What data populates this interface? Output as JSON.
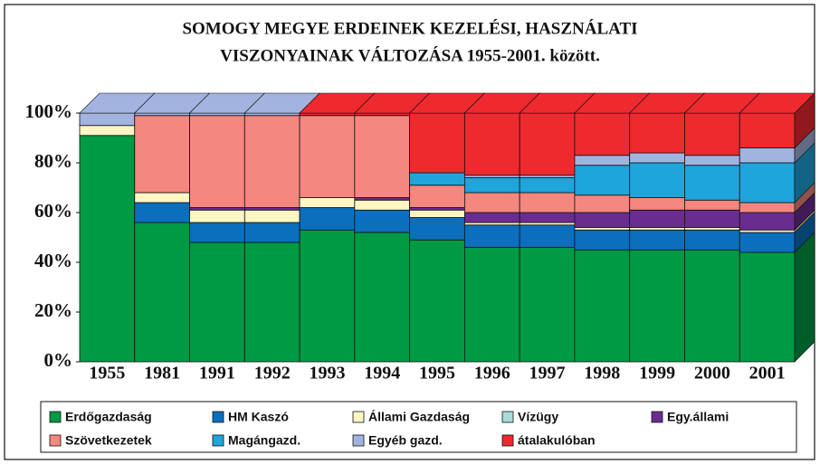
{
  "chart_data": {
    "type": "stacked_bar_3d",
    "title": [
      "SOMOGY MEGYE ERDEINEK KEZELÉSI, HASZNÁLATI",
      "VISZONYAINAK VÁLTOZÁSA  1955-2001. között."
    ],
    "categories": [
      "1955",
      "1981",
      "1991",
      "1992",
      "1993",
      "1994",
      "1995",
      "1996",
      "1997",
      "1998",
      "1999",
      "2000",
      "2001"
    ],
    "series": [
      {
        "name": "Erdőgazdaság",
        "color": "#009a44",
        "values": [
          91,
          56,
          48,
          48,
          53,
          52,
          49,
          46,
          46,
          45,
          45,
          45,
          44
        ]
      },
      {
        "name": "HM Kaszó",
        "color": "#0b6fbd",
        "values": [
          0,
          8,
          8,
          8,
          9,
          9,
          9,
          9,
          9,
          8,
          8,
          8,
          8
        ]
      },
      {
        "name": "Állami Gazdaság",
        "color": "#fff6c4",
        "values": [
          4,
          4,
          5,
          5,
          4,
          4,
          3,
          1,
          1,
          1,
          1,
          1,
          1
        ]
      },
      {
        "name": "Vízügy",
        "color": "#a8dcd8",
        "values": [
          0,
          0,
          0,
          0,
          0,
          0,
          0,
          0,
          0,
          0,
          0,
          0,
          0
        ]
      },
      {
        "name": "Egy.állami",
        "color": "#6a2d8f",
        "values": [
          0,
          0,
          1,
          1,
          0,
          1,
          1,
          4,
          4,
          6,
          7,
          7,
          7
        ]
      },
      {
        "name": "Szövetkezetek",
        "color": "#f4877f",
        "values": [
          0,
          31,
          37,
          37,
          33,
          33,
          9,
          8,
          8,
          7,
          5,
          4,
          4
        ]
      },
      {
        "name": "Magángazd.",
        "color": "#1ea5dc",
        "values": [
          0,
          0,
          0,
          0,
          0,
          0,
          5,
          6,
          6,
          12,
          14,
          14,
          16
        ]
      },
      {
        "name": "Egyéb gazd.",
        "color": "#a3b3e0",
        "values": [
          5,
          1,
          1,
          1,
          0,
          0,
          0,
          1,
          1,
          4,
          4,
          4,
          6
        ]
      },
      {
        "name": "átalakulóban",
        "color": "#ee2a2e",
        "values": [
          0,
          0,
          0,
          0,
          1,
          1,
          24,
          25,
          25,
          17,
          16,
          17,
          14
        ]
      }
    ],
    "ylim": [
      0,
      100
    ],
    "yticks": [
      {
        "value": 0,
        "label": "0%"
      },
      {
        "value": 20,
        "label": "20%"
      },
      {
        "value": 40,
        "label": "40%"
      },
      {
        "value": 60,
        "label": "60%"
      },
      {
        "value": 80,
        "label": "80%"
      },
      {
        "value": 100,
        "label": "100%"
      }
    ]
  }
}
